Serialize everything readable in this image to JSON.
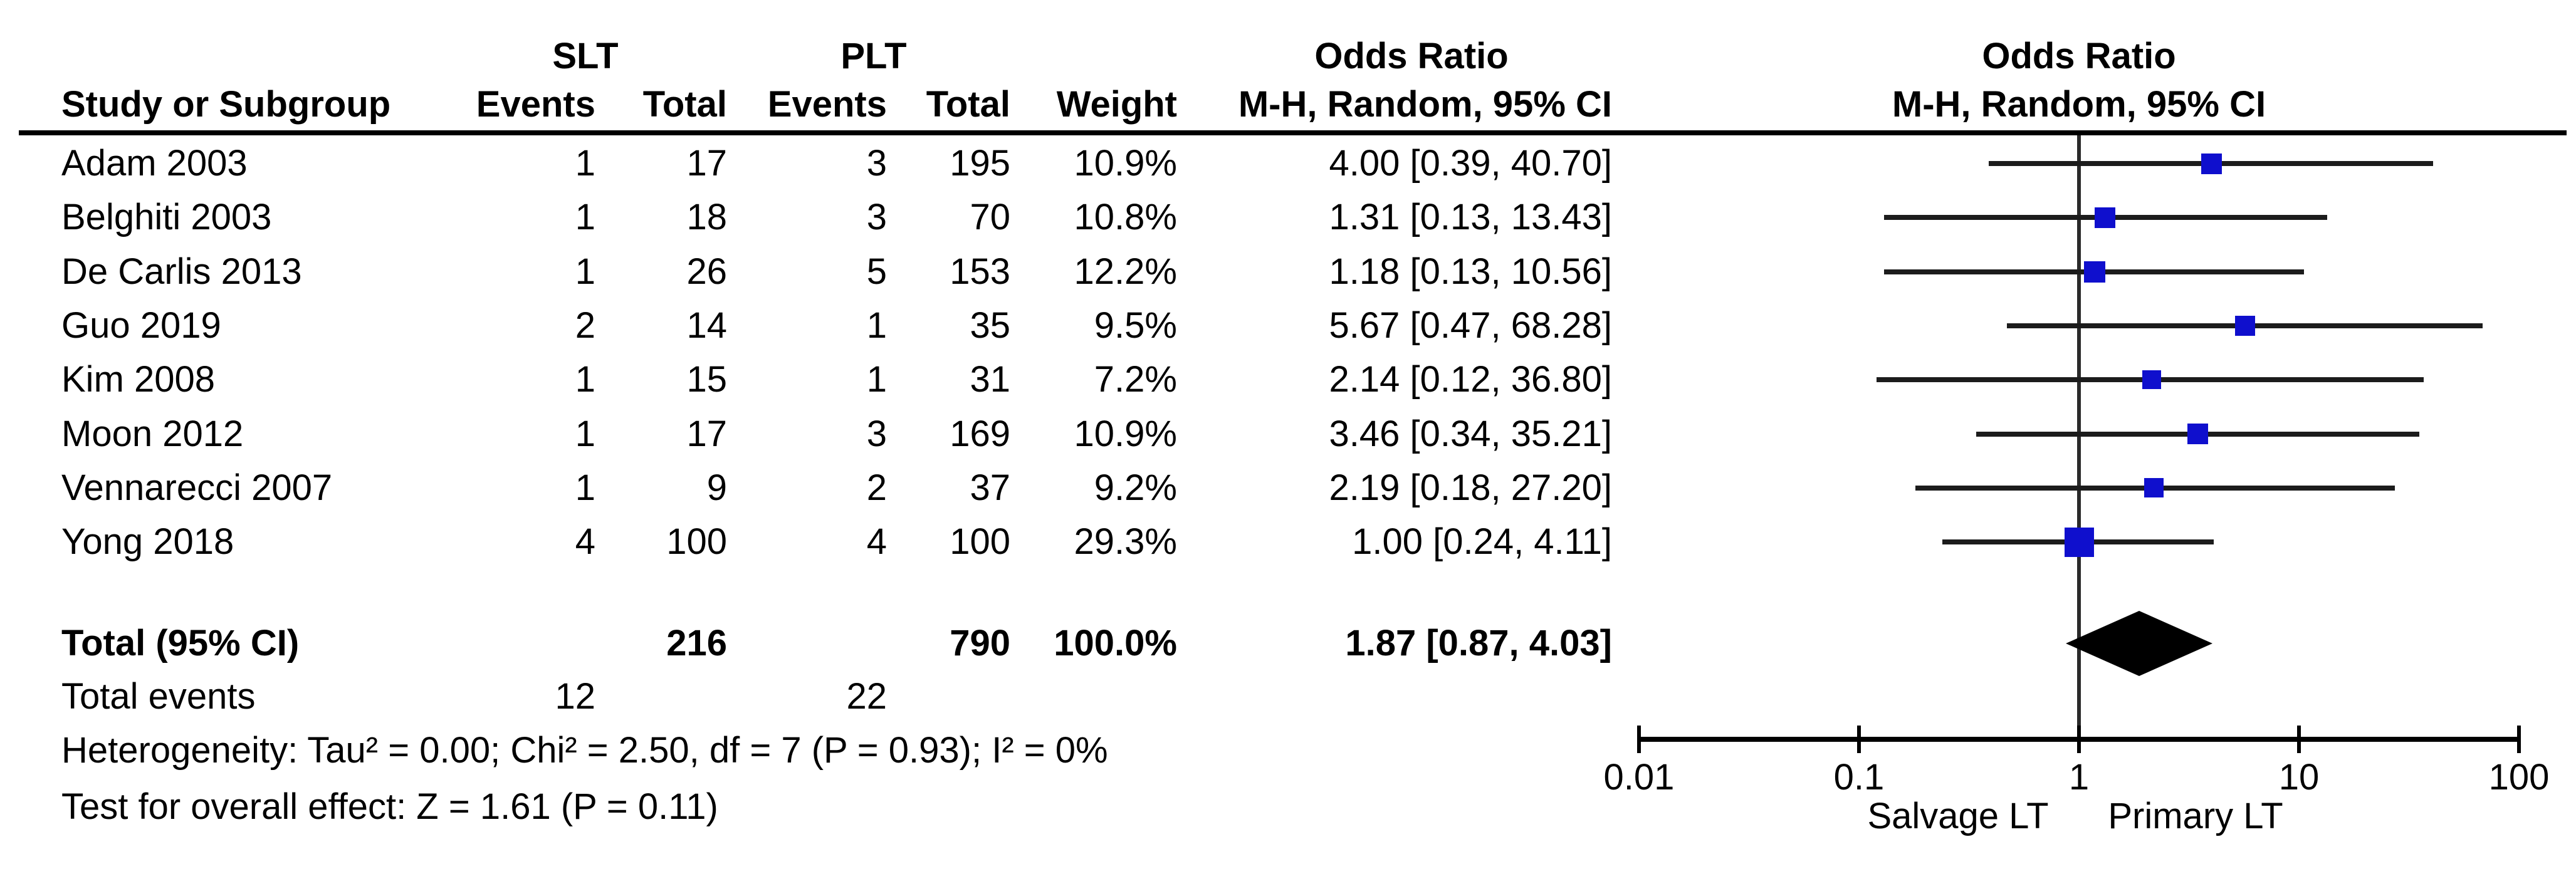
{
  "chart_data": {
    "type": "forest",
    "groups": {
      "exp": "SLT",
      "ctl": "PLT"
    },
    "effect_col": {
      "title": "Odds Ratio",
      "subtitle": "M-H, Random, 95% CI"
    },
    "plot_col": {
      "title": "Odds Ratio",
      "subtitle": "M-H, Random, 95% CI"
    },
    "table_headers": {
      "study": "Study or Subgroup",
      "events": "Events",
      "total": "Total",
      "weight": "Weight"
    },
    "studies": [
      {
        "name": "Adam 2003",
        "e1": "1",
        "n1": "17",
        "e2": "3",
        "n2": "195",
        "weight": "10.9%",
        "weight_pct": 10.9,
        "or": 4.0,
        "lo": 0.39,
        "hi": 40.7,
        "label": "4.00 [0.39, 40.70]"
      },
      {
        "name": "Belghiti 2003",
        "e1": "1",
        "n1": "18",
        "e2": "3",
        "n2": "70",
        "weight": "10.8%",
        "weight_pct": 10.8,
        "or": 1.31,
        "lo": 0.13,
        "hi": 13.43,
        "label": "1.31 [0.13, 13.43]"
      },
      {
        "name": "De Carlis 2013",
        "e1": "1",
        "n1": "26",
        "e2": "5",
        "n2": "153",
        "weight": "12.2%",
        "weight_pct": 12.2,
        "or": 1.18,
        "lo": 0.13,
        "hi": 10.56,
        "label": "1.18 [0.13, 10.56]"
      },
      {
        "name": "Guo 2019",
        "e1": "2",
        "n1": "14",
        "e2": "1",
        "n2": "35",
        "weight": "9.5%",
        "weight_pct": 9.5,
        "or": 5.67,
        "lo": 0.47,
        "hi": 68.28,
        "label": "5.67 [0.47, 68.28]"
      },
      {
        "name": "Kim 2008",
        "e1": "1",
        "n1": "15",
        "e2": "1",
        "n2": "31",
        "weight": "7.2%",
        "weight_pct": 7.2,
        "or": 2.14,
        "lo": 0.12,
        "hi": 36.8,
        "label": "2.14 [0.12, 36.80]"
      },
      {
        "name": "Moon 2012",
        "e1": "1",
        "n1": "17",
        "e2": "3",
        "n2": "169",
        "weight": "10.9%",
        "weight_pct": 10.9,
        "or": 3.46,
        "lo": 0.34,
        "hi": 35.21,
        "label": "3.46 [0.34, 35.21]"
      },
      {
        "name": "Vennarecci 2007",
        "e1": "1",
        "n1": "9",
        "e2": "2",
        "n2": "37",
        "weight": "9.2%",
        "weight_pct": 9.2,
        "or": 2.19,
        "lo": 0.18,
        "hi": 27.2,
        "label": "2.19 [0.18, 27.20]"
      },
      {
        "name": "Yong 2018",
        "e1": "4",
        "n1": "100",
        "e2": "4",
        "n2": "100",
        "weight": "29.3%",
        "weight_pct": 29.3,
        "or": 1.0,
        "lo": 0.24,
        "hi": 4.11,
        "label": "1.00 [0.24, 4.11]"
      }
    ],
    "total": {
      "label": "Total (95% CI)",
      "n1": "216",
      "n2": "790",
      "weight": "100.0%",
      "or": 1.87,
      "lo": 0.87,
      "hi": 4.03,
      "label_or": "1.87 [0.87, 4.03]"
    },
    "total_events": {
      "label": "Total events",
      "e1": "12",
      "e2": "22"
    },
    "footnotes": {
      "heterogeneity": "Heterogeneity: Tau² = 0.00; Chi² = 2.50, df = 7 (P = 0.93); I² = 0%",
      "overall": "Test for overall effect: Z = 1.61 (P = 0.11)"
    },
    "axis": {
      "min": 0.01,
      "max": 100,
      "ticks": [
        0.01,
        0.1,
        1,
        10,
        100
      ],
      "tick_labels": [
        "0.01",
        "0.1",
        "1",
        "10",
        "100"
      ],
      "left_label": "Salvage LT",
      "right_label": "Primary LT"
    },
    "colors": {
      "marker": "#0f0fcd",
      "ci_line": "#1c1c1c",
      "diamond": "#000000",
      "axis": "#000000"
    }
  }
}
